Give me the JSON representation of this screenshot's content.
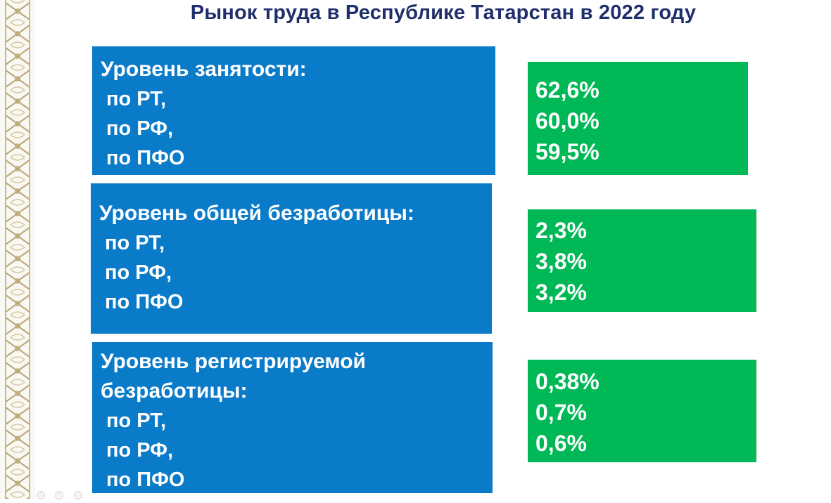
{
  "title": "Рынок труда в Республике Татарстан в 2022 году",
  "blocks": [
    {
      "label_lines": [
        "Уровень занятости:"
      ],
      "regions": [
        "по РТ,",
        "по РФ,",
        "по ПФО"
      ],
      "values": [
        "62,6%",
        "60,0%",
        "59,5%"
      ]
    },
    {
      "label_lines": [
        "Уровень общей безработицы:"
      ],
      "regions": [
        "по РТ,",
        "по РФ,",
        "по ПФО"
      ],
      "values": [
        "2,3%",
        "3,8%",
        "3,2%"
      ]
    },
    {
      "label_lines": [
        "Уровень регистрируемой",
        "безработицы:"
      ],
      "regions": [
        "по РТ,",
        "по РФ,",
        "по ПФО"
      ],
      "values": [
        "0,38%",
        "0,7%",
        "0,6%"
      ]
    }
  ],
  "colors": {
    "title": "#1f2f6b",
    "label_box": "#0a7bc9",
    "value_box": "#00b956",
    "ornament": "#c8b98a"
  }
}
